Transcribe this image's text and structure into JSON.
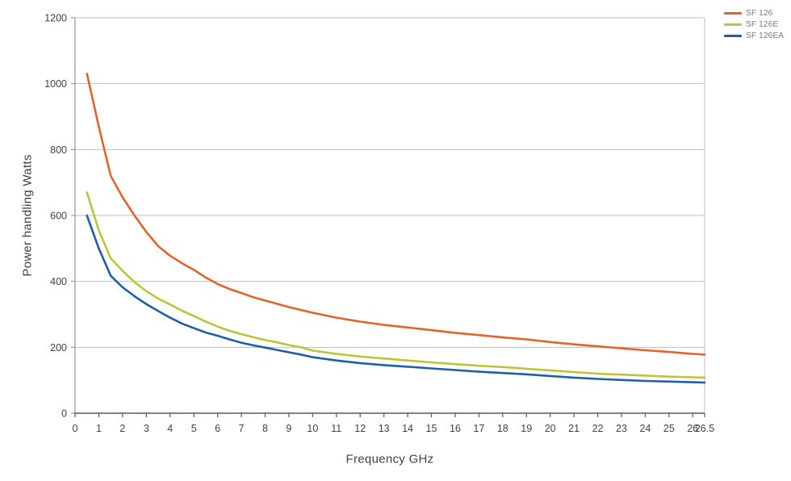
{
  "chart_data": {
    "type": "line",
    "title": "",
    "xlabel": "Frequency GHz",
    "ylabel": "Power handling Watts",
    "xlim": [
      0,
      26.5
    ],
    "ylim": [
      0,
      1200
    ],
    "x_ticks": [
      0,
      1,
      2,
      3,
      4,
      5,
      6,
      7,
      8,
      9,
      10,
      11,
      12,
      13,
      14,
      15,
      16,
      17,
      18,
      19,
      20,
      21,
      22,
      23,
      24,
      25,
      26,
      26.5
    ],
    "x_tick_labels": [
      "0",
      "1",
      "2",
      "3",
      "4",
      "5",
      "6",
      "7",
      "8",
      "9",
      "10",
      "11",
      "12",
      "13",
      "14",
      "15",
      "16",
      "17",
      "18",
      "19",
      "20",
      "21",
      "22",
      "23",
      "24",
      "25",
      "26",
      "26.5"
    ],
    "y_ticks": [
      0,
      200,
      400,
      600,
      800,
      1000,
      1200
    ],
    "grid": "horizontal",
    "legend_position": "top-right-outside",
    "colors": {
      "gridline": "#BDBFC1",
      "left_spine": "#939598",
      "bottom_spine": "#58595B",
      "tick_label": "#414042",
      "legend_text": "#77787B"
    },
    "series": [
      {
        "name": "SF 126",
        "color": "#E2632C",
        "points": [
          [
            0.5,
            1030
          ],
          [
            1,
            870
          ],
          [
            1.5,
            720
          ],
          [
            2,
            655
          ],
          [
            2.5,
            600
          ],
          [
            3,
            550
          ],
          [
            3.5,
            507
          ],
          [
            4,
            478
          ],
          [
            4.5,
            455
          ],
          [
            5,
            435
          ],
          [
            5.5,
            412
          ],
          [
            6,
            392
          ],
          [
            6.5,
            377
          ],
          [
            7,
            365
          ],
          [
            7.5,
            352
          ],
          [
            8,
            342
          ],
          [
            9,
            322
          ],
          [
            10,
            305
          ],
          [
            11,
            290
          ],
          [
            12,
            278
          ],
          [
            13,
            268
          ],
          [
            14,
            260
          ],
          [
            15,
            252
          ],
          [
            16,
            244
          ],
          [
            17,
            237
          ],
          [
            18,
            230
          ],
          [
            19,
            224
          ],
          [
            20,
            216
          ],
          [
            21,
            209
          ],
          [
            22,
            203
          ],
          [
            23,
            197
          ],
          [
            24,
            191
          ],
          [
            25,
            186
          ],
          [
            26,
            180
          ],
          [
            26.5,
            178
          ]
        ]
      },
      {
        "name": "SF 126E",
        "color": "#BDC439",
        "points": [
          [
            0.5,
            670
          ],
          [
            1,
            555
          ],
          [
            1.5,
            470
          ],
          [
            2,
            432
          ],
          [
            2.5,
            398
          ],
          [
            3,
            370
          ],
          [
            3.5,
            348
          ],
          [
            4,
            330
          ],
          [
            4.5,
            311
          ],
          [
            5,
            295
          ],
          [
            5.5,
            278
          ],
          [
            6,
            263
          ],
          [
            6.5,
            250
          ],
          [
            7,
            240
          ],
          [
            7.5,
            231
          ],
          [
            8,
            222
          ],
          [
            8.5,
            215
          ],
          [
            9,
            207
          ],
          [
            9.5,
            200
          ],
          [
            10,
            190
          ],
          [
            11,
            180
          ],
          [
            12,
            172
          ],
          [
            13,
            166
          ],
          [
            14,
            160
          ],
          [
            15,
            154
          ],
          [
            16,
            149
          ],
          [
            17,
            144
          ],
          [
            18,
            140
          ],
          [
            19,
            135
          ],
          [
            20,
            130
          ],
          [
            21,
            125
          ],
          [
            22,
            120
          ],
          [
            23,
            117
          ],
          [
            24,
            114
          ],
          [
            25,
            111
          ],
          [
            26,
            109
          ],
          [
            26.5,
            108
          ]
        ]
      },
      {
        "name": "SF 126EA",
        "color": "#1F5FA8",
        "points": [
          [
            0.5,
            600
          ],
          [
            1,
            500
          ],
          [
            1.5,
            417
          ],
          [
            2,
            382
          ],
          [
            2.5,
            355
          ],
          [
            3,
            331
          ],
          [
            3.5,
            310
          ],
          [
            4,
            290
          ],
          [
            4.5,
            272
          ],
          [
            5,
            258
          ],
          [
            5.5,
            245
          ],
          [
            6,
            235
          ],
          [
            6.5,
            224
          ],
          [
            7,
            214
          ],
          [
            7.5,
            206
          ],
          [
            8,
            199
          ],
          [
            8.5,
            192
          ],
          [
            9,
            185
          ],
          [
            9.5,
            178
          ],
          [
            10,
            170
          ],
          [
            11,
            160
          ],
          [
            12,
            152
          ],
          [
            13,
            146
          ],
          [
            14,
            141
          ],
          [
            15,
            136
          ],
          [
            16,
            131
          ],
          [
            17,
            126
          ],
          [
            18,
            122
          ],
          [
            19,
            118
          ],
          [
            20,
            113
          ],
          [
            21,
            108
          ],
          [
            22,
            104
          ],
          [
            23,
            101
          ],
          [
            24,
            98
          ],
          [
            25,
            96
          ],
          [
            26,
            94
          ],
          [
            26.5,
            93
          ]
        ]
      }
    ]
  }
}
